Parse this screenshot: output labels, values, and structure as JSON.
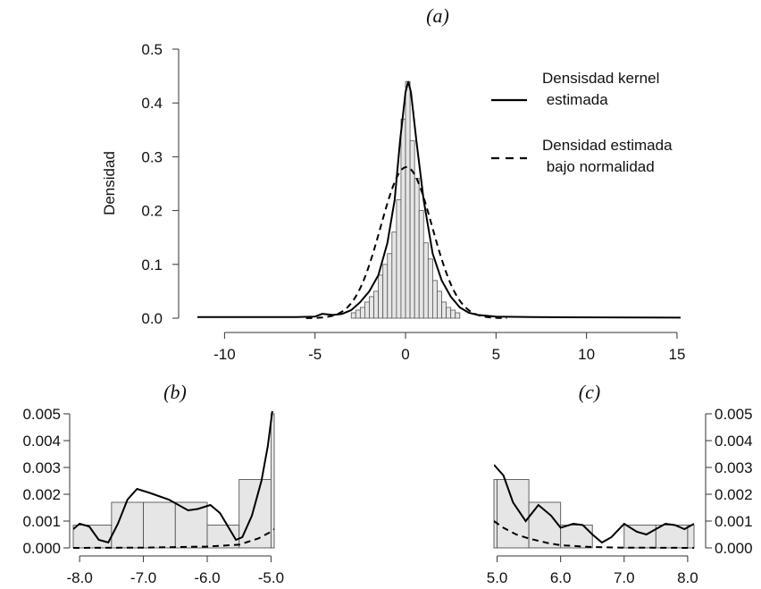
{
  "chart_data": [
    {
      "type": "histogram",
      "panel_title": "(a)",
      "ylabel": "Densidad",
      "xlim": [
        -11.5,
        15.2
      ],
      "ylim": [
        0,
        0.5
      ],
      "x_ticks": [
        -10,
        -5,
        0,
        5,
        10,
        15
      ],
      "y_ticks": [
        0.0,
        0.1,
        0.2,
        0.3,
        0.4,
        0.5
      ],
      "x_tick_labels": [
        "-10",
        "-5",
        "0",
        "5",
        "10",
        "15"
      ],
      "y_tick_labels": [
        "0.0",
        "0.1",
        "0.2",
        "0.3",
        "0.4",
        "0.5"
      ],
      "legend": {
        "position": "top-right",
        "entries": [
          {
            "label_line1": "Densisdad kernel",
            "label_line2": " estimada",
            "style": "solid"
          },
          {
            "label_line1": "Densidad estimada",
            "label_line2": " bajo normalidad",
            "style": "dashed"
          }
        ]
      },
      "histogram": {
        "bin_width": 0.25,
        "bins": [
          {
            "x0": -3.0,
            "density": 0.01
          },
          {
            "x0": -2.75,
            "density": 0.015
          },
          {
            "x0": -2.5,
            "density": 0.02
          },
          {
            "x0": -2.25,
            "density": 0.03
          },
          {
            "x0": -2.0,
            "density": 0.04
          },
          {
            "x0": -1.75,
            "density": 0.05
          },
          {
            "x0": -1.5,
            "density": 0.08
          },
          {
            "x0": -1.25,
            "density": 0.1
          },
          {
            "x0": -1.0,
            "density": 0.12
          },
          {
            "x0": -0.75,
            "density": 0.16
          },
          {
            "x0": -0.5,
            "density": 0.22
          },
          {
            "x0": -0.25,
            "density": 0.37
          },
          {
            "x0": 0.0,
            "density": 0.44
          },
          {
            "x0": 0.25,
            "density": 0.33
          },
          {
            "x0": 0.5,
            "density": 0.26
          },
          {
            "x0": 0.75,
            "density": 0.2
          },
          {
            "x0": 1.0,
            "density": 0.14
          },
          {
            "x0": 1.25,
            "density": 0.11
          },
          {
            "x0": 1.5,
            "density": 0.07
          },
          {
            "x0": 1.75,
            "density": 0.05
          },
          {
            "x0": 2.0,
            "density": 0.03
          },
          {
            "x0": 2.25,
            "density": 0.02
          },
          {
            "x0": 2.5,
            "density": 0.015
          },
          {
            "x0": 2.75,
            "density": 0.01
          }
        ]
      },
      "series": [
        {
          "style": "solid",
          "x": [
            -11.5,
            -6,
            -5,
            -4.6,
            -4,
            -3.5,
            -3,
            -2.5,
            -2,
            -1.5,
            -1,
            -0.6,
            -0.3,
            0,
            0.15,
            0.3,
            0.6,
            1,
            1.5,
            2,
            2.5,
            3,
            3.5,
            4,
            5,
            7,
            15.2
          ],
          "y": [
            0.002,
            0.002,
            0.003,
            0.008,
            0.006,
            0.008,
            0.015,
            0.03,
            0.05,
            0.08,
            0.14,
            0.22,
            0.33,
            0.42,
            0.44,
            0.42,
            0.33,
            0.22,
            0.12,
            0.07,
            0.04,
            0.02,
            0.01,
            0.006,
            0.003,
            0.002,
            0.001
          ]
        },
        {
          "style": "dashed",
          "mean": 0.05,
          "sd": 1.42
        }
      ]
    },
    {
      "type": "histogram",
      "panel_title": "(b)",
      "xlim": [
        -8.1,
        -4.95
      ],
      "ylim": [
        0,
        0.005
      ],
      "x_ticks": [
        -8.0,
        -7.0,
        -6.0,
        -5.0
      ],
      "y_ticks": [
        0.0,
        0.001,
        0.002,
        0.003,
        0.004,
        0.005
      ],
      "x_tick_labels": [
        "-8.0",
        "-7.0",
        "-6.0",
        "-5.0"
      ],
      "y_tick_labels": [
        "0.000",
        "0.001",
        "0.002",
        "0.003",
        "0.004",
        "0.005"
      ],
      "histogram": {
        "bins": [
          {
            "x0": -8.1,
            "x1": -7.5,
            "density": 0.00085
          },
          {
            "x0": -7.5,
            "x1": -7.0,
            "density": 0.0017
          },
          {
            "x0": -7.0,
            "x1": -6.5,
            "density": 0.0017
          },
          {
            "x0": -6.5,
            "x1": -6.0,
            "density": 0.0017
          },
          {
            "x0": -6.0,
            "x1": -5.5,
            "density": 0.00085
          },
          {
            "x0": -5.5,
            "x1": -5.0,
            "density": 0.00255
          },
          {
            "x0": -5.0,
            "x1": -4.95,
            "density": 0.005
          }
        ]
      },
      "series": [
        {
          "style": "solid",
          "x": [
            -8.1,
            -8.0,
            -7.85,
            -7.7,
            -7.55,
            -7.4,
            -7.25,
            -7.1,
            -6.9,
            -6.6,
            -6.3,
            -6.15,
            -5.95,
            -5.8,
            -5.65,
            -5.55,
            -5.45,
            -5.3,
            -5.15,
            -5.05,
            -4.98
          ],
          "y": [
            0.0007,
            0.0009,
            0.0008,
            0.0003,
            0.0002,
            0.0009,
            0.0018,
            0.0022,
            0.00205,
            0.0018,
            0.0014,
            0.00145,
            0.0016,
            0.0013,
            0.0007,
            0.0003,
            0.0004,
            0.0012,
            0.0025,
            0.0038,
            0.0051
          ]
        },
        {
          "style": "dashed",
          "x": [
            -8.1,
            -7.0,
            -6.0,
            -5.5,
            -5.2,
            -5.0,
            -4.95
          ],
          "y": [
            0.0,
            1e-05,
            5e-05,
            0.00012,
            0.00035,
            0.0006,
            0.0007
          ]
        }
      ]
    },
    {
      "type": "histogram",
      "panel_title": "(c)",
      "xlim": [
        4.95,
        8.1
      ],
      "ylim": [
        0,
        0.005
      ],
      "y_axis_side": "right",
      "x_ticks": [
        5.0,
        6.0,
        7.0,
        8.0
      ],
      "y_ticks": [
        0.0,
        0.001,
        0.002,
        0.003,
        0.004,
        0.005
      ],
      "x_tick_labels": [
        "5.0",
        "6.0",
        "7.0",
        "8.0"
      ],
      "y_tick_labels": [
        "0.000",
        "0.001",
        "0.002",
        "0.003",
        "0.004",
        "0.005"
      ],
      "histogram": {
        "bins": [
          {
            "x0": 4.95,
            "x1": 5.0,
            "density": 0.00255
          },
          {
            "x0": 5.0,
            "x1": 5.5,
            "density": 0.00255
          },
          {
            "x0": 5.5,
            "x1": 6.0,
            "density": 0.0017
          },
          {
            "x0": 6.0,
            "x1": 6.5,
            "density": 0.00085
          },
          {
            "x0": 7.0,
            "x1": 7.5,
            "density": 0.00085
          },
          {
            "x0": 7.5,
            "x1": 8.0,
            "density": 0.00085
          },
          {
            "x0": 8.0,
            "x1": 8.1,
            "density": 0.00085
          }
        ]
      },
      "series": [
        {
          "style": "solid",
          "x": [
            4.95,
            5.1,
            5.25,
            5.45,
            5.65,
            5.85,
            6.0,
            6.2,
            6.35,
            6.5,
            6.65,
            6.8,
            7.0,
            7.2,
            7.35,
            7.5,
            7.65,
            7.8,
            7.95,
            8.1
          ],
          "y": [
            0.0031,
            0.0027,
            0.0017,
            0.001,
            0.0016,
            0.0012,
            0.00075,
            0.0009,
            0.00085,
            0.0005,
            0.0002,
            0.0004,
            0.0009,
            0.0006,
            0.0005,
            0.0007,
            0.0009,
            0.00085,
            0.0007,
            0.0009
          ]
        },
        {
          "style": "dashed",
          "x": [
            4.95,
            5.1,
            5.3,
            5.5,
            5.8,
            6.0,
            6.5,
            7.0,
            8.1
          ],
          "y": [
            0.001,
            0.00075,
            0.0005,
            0.00035,
            0.00018,
            0.0001,
            3e-05,
            1e-05,
            0.0
          ]
        }
      ]
    }
  ]
}
